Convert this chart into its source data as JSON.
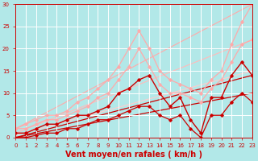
{
  "xlabel": "Vent moyen/en rafales ( km/h )",
  "xlim": [
    0,
    23
  ],
  "ylim": [
    0,
    30
  ],
  "xticks": [
    0,
    1,
    2,
    3,
    4,
    5,
    6,
    7,
    8,
    9,
    10,
    11,
    12,
    13,
    14,
    15,
    16,
    17,
    18,
    19,
    20,
    21,
    22,
    23
  ],
  "yticks": [
    0,
    5,
    10,
    15,
    20,
    25,
    30
  ],
  "bg_color": "#b2e8e8",
  "grid_color": "#ffffff",
  "diag_lines": [
    {
      "x": [
        0,
        23
      ],
      "y": [
        2,
        30
      ],
      "color": "#ffaaaa",
      "lw": 0.8
    },
    {
      "x": [
        0,
        23
      ],
      "y": [
        1,
        22
      ],
      "color": "#ffbbbb",
      "lw": 0.8
    },
    {
      "x": [
        0,
        23
      ],
      "y": [
        0.5,
        15
      ],
      "color": "#ffcccc",
      "lw": 0.8
    },
    {
      "x": [
        0,
        23
      ],
      "y": [
        0,
        10
      ],
      "color": "#cc0000",
      "lw": 0.9
    },
    {
      "x": [
        0,
        23
      ],
      "y": [
        0,
        14
      ],
      "color": "#cc0000",
      "lw": 0.9
    }
  ],
  "pink_line1_x": [
    0,
    1,
    2,
    3,
    4,
    5,
    6,
    7,
    8,
    9,
    10,
    11,
    12,
    13,
    14,
    15,
    16,
    17,
    18,
    19,
    20,
    21,
    22,
    23
  ],
  "pink_line1_y": [
    2,
    3,
    4,
    5,
    5,
    6,
    8,
    9,
    11,
    13,
    16,
    20,
    24,
    20,
    15,
    13,
    12,
    11,
    10,
    13,
    15,
    21,
    26,
    30
  ],
  "pink_line1_color": "#ffaaaa",
  "pink_line1_lw": 0.9,
  "pink_line2_x": [
    0,
    1,
    2,
    3,
    4,
    5,
    6,
    7,
    8,
    9,
    10,
    11,
    12,
    13,
    14,
    15,
    16,
    17,
    18,
    19,
    20,
    21,
    22,
    23
  ],
  "pink_line2_y": [
    2,
    2,
    3,
    4,
    4,
    5,
    6,
    7,
    9,
    10,
    13,
    16,
    20,
    16,
    12,
    10,
    10,
    9,
    8,
    11,
    13,
    17,
    21,
    22
  ],
  "pink_line2_color": "#ffaaaa",
  "pink_line2_lw": 0.9,
  "red_line1_x": [
    0,
    1,
    2,
    3,
    4,
    5,
    6,
    7,
    8,
    9,
    10,
    11,
    12,
    13,
    14,
    15,
    16,
    17,
    18,
    19,
    20,
    21,
    22,
    23
  ],
  "red_line1_y": [
    1,
    1,
    2,
    3,
    3,
    4,
    5,
    5,
    6,
    7,
    10,
    11,
    13,
    14,
    10,
    7,
    9,
    4,
    1,
    9,
    9,
    14,
    17,
    14
  ],
  "red_line1_color": "#cc0000",
  "red_line1_lw": 1.0,
  "red_line2_x": [
    0,
    1,
    2,
    3,
    4,
    5,
    6,
    7,
    8,
    9,
    10,
    11,
    12,
    13,
    14,
    15,
    16,
    17,
    18,
    19,
    20,
    21,
    22,
    23
  ],
  "red_line2_y": [
    0,
    0,
    0.5,
    1,
    1,
    2,
    2,
    3,
    4,
    4,
    5,
    6,
    7,
    7,
    5,
    4,
    5,
    2,
    0,
    5,
    5,
    8,
    10,
    8
  ],
  "red_line2_color": "#cc0000",
  "red_line2_lw": 0.9,
  "marker": "D",
  "marker_size": 1.8,
  "tick_fontsize": 5,
  "xlabel_fontsize": 7
}
